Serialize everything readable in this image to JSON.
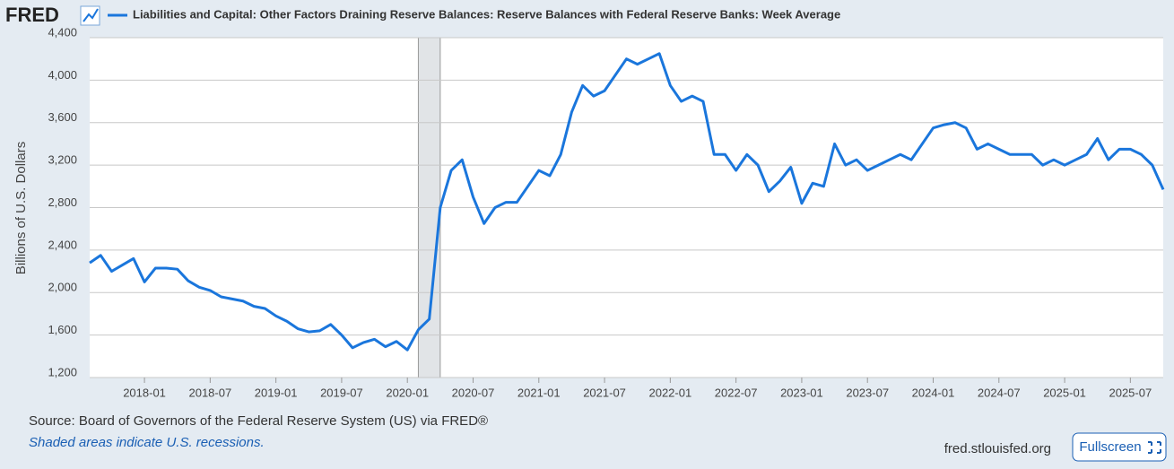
{
  "brand": "FRED",
  "chart_data": {
    "type": "line",
    "title": "Liabilities and Capital: Other Factors Draining Reserve Balances: Reserve Balances with Federal Reserve Banks: Week Average",
    "y_label": "Billions of U.S. Dollars",
    "x": [
      "2017-08",
      "2017-09",
      "2017-10",
      "2017-11",
      "2017-12",
      "2018-01",
      "2018-02",
      "2018-03",
      "2018-04",
      "2018-05",
      "2018-06",
      "2018-07",
      "2018-08",
      "2018-09",
      "2018-10",
      "2018-11",
      "2018-12",
      "2019-01",
      "2019-02",
      "2019-03",
      "2019-04",
      "2019-05",
      "2019-06",
      "2019-07",
      "2019-08",
      "2019-09",
      "2019-10",
      "2019-11",
      "2019-12",
      "2020-01",
      "2020-02",
      "2020-03",
      "2020-04",
      "2020-05",
      "2020-06",
      "2020-07",
      "2020-08",
      "2020-09",
      "2020-10",
      "2020-11",
      "2020-12",
      "2021-01",
      "2021-02",
      "2021-03",
      "2021-04",
      "2021-05",
      "2021-06",
      "2021-07",
      "2021-08",
      "2021-09",
      "2021-10",
      "2021-11",
      "2021-12",
      "2022-01",
      "2022-02",
      "2022-03",
      "2022-04",
      "2022-05",
      "2022-06",
      "2022-07",
      "2022-08",
      "2022-09",
      "2022-10",
      "2022-11",
      "2022-12",
      "2023-01",
      "2023-02",
      "2023-03",
      "2023-04",
      "2023-05",
      "2023-06",
      "2023-07",
      "2023-08",
      "2023-09",
      "2023-10",
      "2023-11",
      "2023-12",
      "2024-01",
      "2024-02",
      "2024-03",
      "2024-04",
      "2024-05",
      "2024-06",
      "2024-07",
      "2024-08",
      "2024-09",
      "2024-10",
      "2024-11",
      "2024-12",
      "2025-01",
      "2025-02",
      "2025-03",
      "2025-04",
      "2025-05",
      "2025-06",
      "2025-07",
      "2025-08",
      "2025-09",
      "2025-10"
    ],
    "series": [
      {
        "name": "Liabilities and Capital: Other Factors Draining Reserve Balances: Reserve Balances with Federal Reserve Banks: Week Average",
        "color": "#1a76dc",
        "values": [
          2280,
          2350,
          2200,
          2260,
          2320,
          2100,
          2230,
          2230,
          2220,
          2110,
          2050,
          2020,
          1960,
          1940,
          1920,
          1870,
          1850,
          1780,
          1730,
          1660,
          1630,
          1640,
          1700,
          1600,
          1480,
          1530,
          1560,
          1490,
          1540,
          1460,
          1650,
          1750,
          2800,
          3150,
          3250,
          2900,
          2650,
          2800,
          2850,
          2850,
          3000,
          3150,
          3100,
          3300,
          3700,
          3950,
          3850,
          3900,
          4050,
          4200,
          4150,
          4200,
          4250,
          3950,
          3800,
          3850,
          3800,
          3300,
          3300,
          3150,
          3300,
          3200,
          2950,
          3050,
          3180,
          2840,
          3030,
          3000,
          3400,
          3200,
          3250,
          3150,
          3200,
          3250,
          3300,
          3250,
          3400,
          3550,
          3580,
          3600,
          3550,
          3350,
          3400,
          3350,
          3300,
          3300,
          3300,
          3200,
          3250,
          3200,
          3250,
          3300,
          3450,
          3250,
          3350,
          3350,
          3300,
          3200,
          2970
        ]
      }
    ],
    "xlim": [
      "2017-08",
      "2025-10"
    ],
    "xticks": [
      "2018-01",
      "2018-07",
      "2019-01",
      "2019-07",
      "2020-01",
      "2020-07",
      "2021-01",
      "2021-07",
      "2022-01",
      "2022-07",
      "2023-01",
      "2023-07",
      "2024-01",
      "2024-07",
      "2025-01",
      "2025-07"
    ],
    "ylim": [
      1200,
      4400
    ],
    "yticks": [
      {
        "value": 1200,
        "label": "1,200"
      },
      {
        "value": 1600,
        "label": "1,600"
      },
      {
        "value": 2000,
        "label": "2,000"
      },
      {
        "value": 2400,
        "label": "2,400"
      },
      {
        "value": 2800,
        "label": "2,800"
      },
      {
        "value": 3200,
        "label": "3,200"
      },
      {
        "value": 3600,
        "label": "3,600"
      },
      {
        "value": 4000,
        "label": "4,000"
      },
      {
        "value": 4400,
        "label": "4,400"
      }
    ],
    "grid": true,
    "recessions": [
      {
        "start": "2020-02",
        "end": "2020-04"
      }
    ]
  },
  "footer": {
    "source": "Source: Board of Governors of the Federal Reserve System (US) via FRED®",
    "note": "Shaded areas indicate U.S. recessions.",
    "site": "fred.stlouisfed.org",
    "button": "Fullscreen"
  }
}
